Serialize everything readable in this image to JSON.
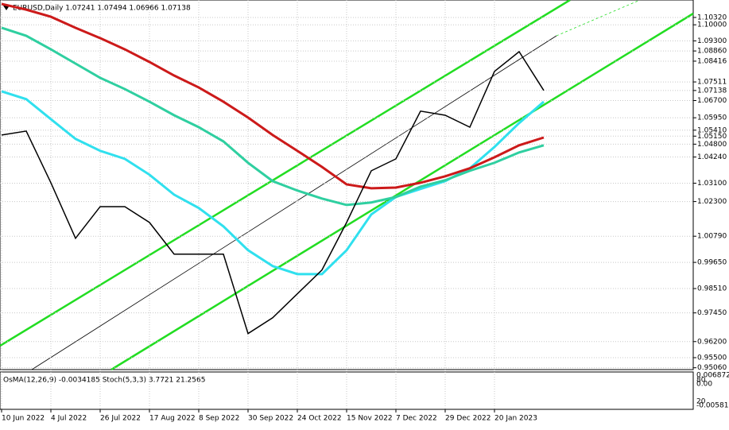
{
  "chart_data": {
    "type": "line",
    "title": "EURUSD,Daily  1.07241 1.07494 1.06966 1.07138",
    "categories": [
      "10 Jun 2022",
      null,
      "4 Jul 2022",
      null,
      "26 Jul 2022",
      null,
      "17 Aug 2022",
      null,
      "8 Sep 2022",
      null,
      "30 Sep 2022",
      null,
      "24 Oct 2022",
      null,
      "15 Nov 2022",
      null,
      "7 Dec 2022",
      null,
      "29 Dec 2022",
      null,
      "20 Jan 2023",
      null,
      null
    ],
    "series": [
      {
        "color": "#000000",
        "values": [
          1.052,
          1.0537,
          1.0312,
          1.007,
          1.0208,
          1.0208,
          1.0139,
          1.0001,
          1.0001,
          1.0001,
          0.9655,
          0.9724,
          0.9828,
          0.9932,
          1.0139,
          1.0364,
          1.0416,
          1.0624,
          1.0606,
          1.0554,
          1.0797,
          1.0883,
          1.0714
        ]
      },
      {
        "color": "#cc1a1a",
        "values": [
          1.1091,
          1.1066,
          1.1035,
          1.0987,
          1.0942,
          1.0893,
          1.0838,
          1.0779,
          1.0727,
          1.0665,
          1.0596,
          1.052,
          1.0451,
          1.0381,
          1.0305,
          1.0288,
          1.0291,
          1.0312,
          1.034,
          1.0375,
          1.0423,
          1.0475,
          1.0509
        ]
      },
      {
        "color": "#2fcfa0",
        "values": [
          1.0987,
          1.0952,
          1.0893,
          1.0831,
          1.0769,
          1.072,
          1.0665,
          1.0606,
          1.0554,
          1.0492,
          1.0399,
          1.0319,
          1.0278,
          1.0243,
          1.0215,
          1.0226,
          1.025,
          1.0295,
          1.0323,
          1.0364,
          1.0399,
          1.0444,
          1.0475
        ]
      },
      {
        "color": "#30e0ee",
        "values": [
          1.071,
          1.0676,
          1.0589,
          1.0503,
          1.0451,
          1.0416,
          1.0347,
          1.026,
          1.0202,
          1.0122,
          1.0018,
          0.9949,
          0.9914,
          0.9914,
          1.0018,
          1.0174,
          1.025,
          1.0285,
          1.0319,
          1.0375,
          1.0468,
          1.0572,
          1.0665
        ]
      }
    ],
    "ylim": [
      0.9498,
      1.1108
    ],
    "yticks": [
      {
        "value": 1.1032,
        "label": "1.10320"
      },
      {
        "value": 1.1,
        "label": "1.10000"
      },
      {
        "value": 1.093,
        "label": "1.09300"
      },
      {
        "value": 1.0886,
        "label": "1.08860"
      },
      {
        "value": 1.08416,
        "label": "1.08416"
      },
      {
        "value": 1.07511,
        "label": "1.07511"
      },
      {
        "value": 1.07138,
        "label": "1.07138"
      },
      {
        "value": 1.067,
        "label": "1.06700"
      },
      {
        "value": 1.0595,
        "label": "1.05950"
      },
      {
        "value": 1.0541,
        "label": "1.05410"
      },
      {
        "value": 1.0515,
        "label": "1.05150"
      },
      {
        "value": 1.048,
        "label": "1.04800"
      },
      {
        "value": 1.0424,
        "label": "1.04240"
      },
      {
        "value": 1.031,
        "label": "1.03100"
      },
      {
        "value": 1.023,
        "label": "1.02300"
      },
      {
        "value": 1.0079,
        "label": "1.00790"
      },
      {
        "value": 0.9965,
        "label": "0.99650"
      },
      {
        "value": 0.9851,
        "label": "0.98510"
      },
      {
        "value": 0.9745,
        "label": "0.97450"
      },
      {
        "value": 0.962,
        "label": "0.96200"
      },
      {
        "value": 0.955,
        "label": "0.95500"
      },
      {
        "value": 0.9506,
        "label": "0.95060"
      }
    ],
    "grid": true,
    "indicator": {
      "label": "OsMA(12,26,9) -0.0034185  Stoch(5,3,3) 3.7721 21.2565",
      "axis_labels": [
        "0.0068723",
        "0.00",
        "-0.005812",
        "80",
        "20"
      ]
    }
  }
}
